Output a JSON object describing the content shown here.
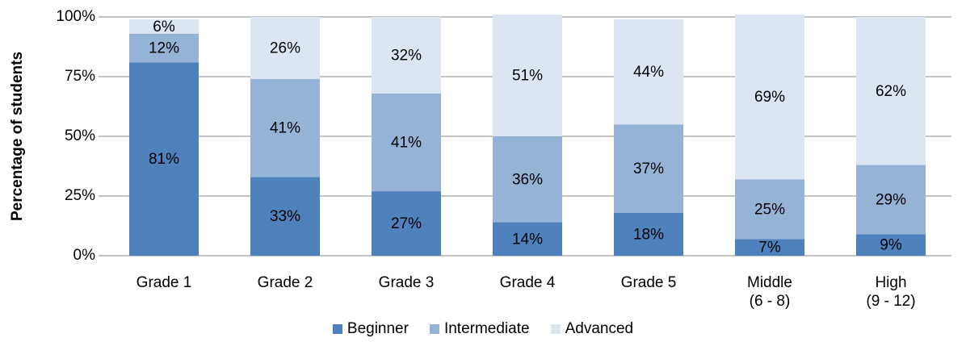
{
  "chart_data": {
    "type": "stacked_bar",
    "y_label": "Percentage of students",
    "categories": [
      "Grade 1",
      "Grade 2",
      "Grade 3",
      "Grade 4",
      "Grade 5",
      "Middle\n(6 - 8)",
      "High\n(9 - 12)"
    ],
    "series": [
      {
        "name": "Beginner",
        "color": "#4f81bd",
        "values": [
          81,
          33,
          27,
          14,
          18,
          7,
          9
        ],
        "value_labels": [
          "81%",
          "33%",
          "27%",
          "14%",
          "18%",
          "7%",
          "9%"
        ]
      },
      {
        "name": "Intermediate",
        "color": "#95b3d7",
        "values": [
          12,
          41,
          41,
          36,
          37,
          25,
          29
        ],
        "value_labels": [
          "12%",
          "41%",
          "41%",
          "36%",
          "37%",
          "25%",
          "29%"
        ]
      },
      {
        "name": "Advanced",
        "color": "#dce6f2",
        "values": [
          6,
          26,
          32,
          51,
          44,
          69,
          62
        ],
        "value_labels": [
          "6%",
          "26%",
          "32%",
          "51%",
          "44%",
          "69%",
          "62%"
        ]
      }
    ],
    "ylim": [
      0,
      100
    ],
    "yticks": [
      {
        "value": 0,
        "label": "0%"
      },
      {
        "value": 25,
        "label": "25%"
      },
      {
        "value": 50,
        "label": "50%"
      },
      {
        "value": 75,
        "label": "75%"
      },
      {
        "value": 100,
        "label": "100%"
      }
    ],
    "grid": true,
    "legend": "bottom"
  }
}
